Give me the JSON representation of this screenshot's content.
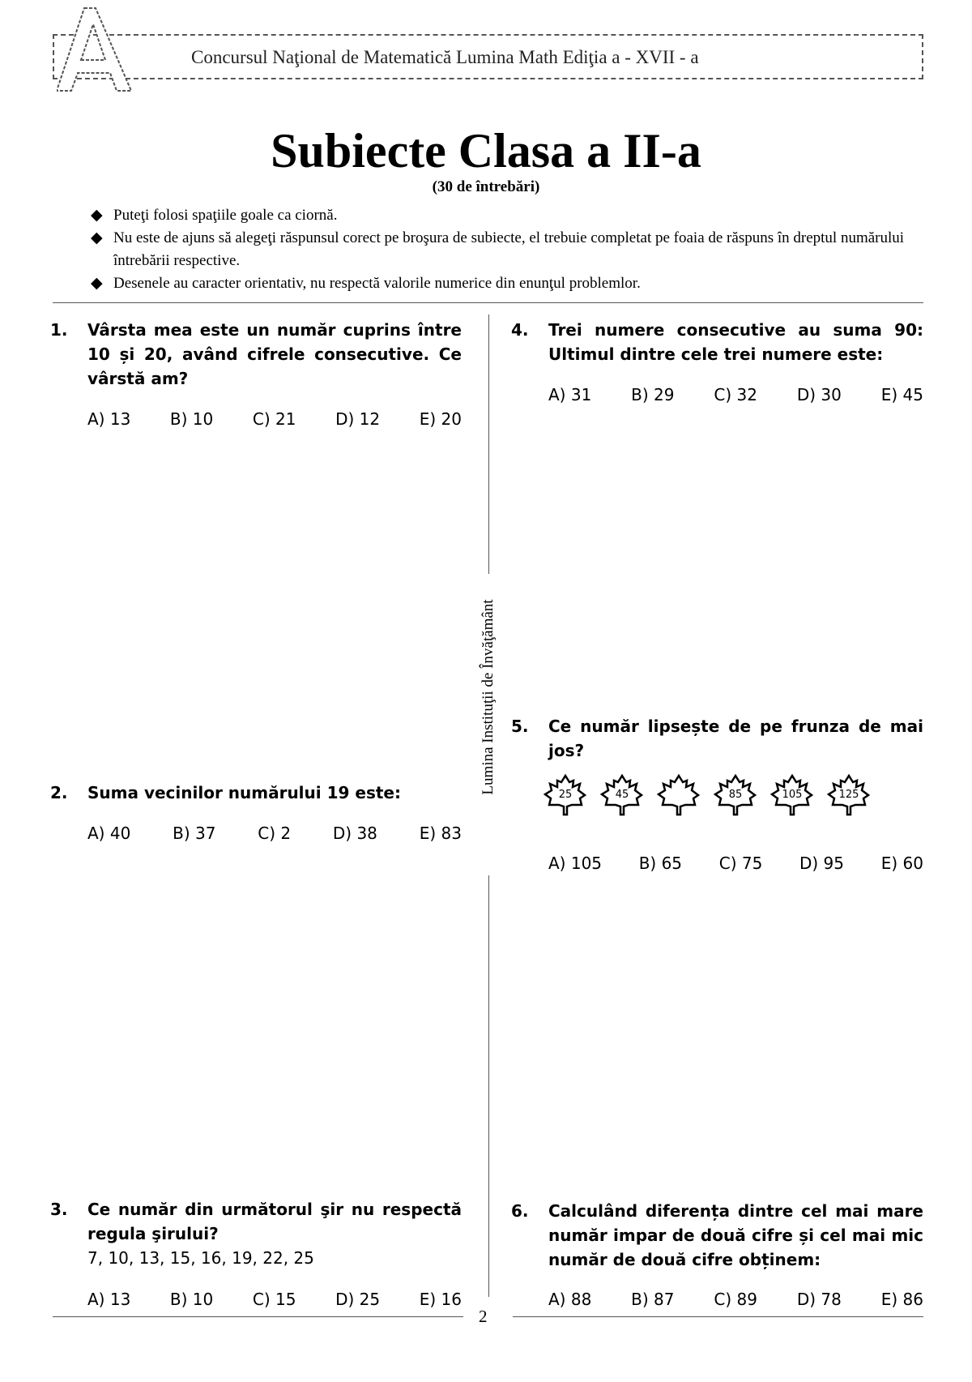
{
  "header": {
    "logo_letter": "A",
    "text": "Concursul Naţional de Matematică Lumina Math Ediţia a - XVII - a"
  },
  "title": "Subiecte Clasa a II-a",
  "subtitle": "(30 de întrebări)",
  "rules": [
    "Puteţi folosi spaţiile goale ca ciornă.",
    "Nu este de ajuns să alegeţi răspunsul corect pe broşura de subiecte, el trebuie completat pe foaia de răspuns în dreptul numărului întrebării respective.",
    "Desenele au caracter orientativ, nu respectă valorile numerice din enunţul problemlor."
  ],
  "side_text": "Lumina Instituţii de Învăţământ",
  "page_number": "2",
  "questions": [
    {
      "num": "1.",
      "text": "Vârsta mea este un număr cuprins între 10 și 20, având cifrele consecutive. Ce vârstă am?",
      "options": [
        "A) 13",
        "B) 10",
        "C) 21",
        "D) 12",
        "E) 20"
      ]
    },
    {
      "num": "2.",
      "text": "Suma vecinilor numărului 19 este:",
      "options": [
        "A) 40",
        "B) 37",
        "C) 2",
        "D) 38",
        "E) 83"
      ]
    },
    {
      "num": "3.",
      "text": "Ce număr din următorul şir nu respectă regula şirului?",
      "sequence": "7, 10, 13, 15, 16, 19, 22, 25",
      "options": [
        "A) 13",
        "B) 10",
        "C) 15",
        "D) 25",
        "E) 16"
      ]
    },
    {
      "num": "4.",
      "text": "Trei numere consecutive au suma 90: Ultimul dintre cele trei numere este:",
      "options": [
        "A) 31",
        "B) 29",
        "C) 32",
        "D) 30",
        "E) 45"
      ]
    },
    {
      "num": "5.",
      "text": "Ce număr lipsește de pe frunza de mai jos?",
      "leaves": [
        "25",
        "45",
        "",
        "85",
        "105",
        "125"
      ],
      "options": [
        "A) 105",
        "B) 65",
        "C) 75",
        "D) 95",
        "E) 60"
      ]
    },
    {
      "num": "6.",
      "text": "Calculând diferența dintre cel mai mare număr impar de două cifre și cel mai mic număr de două cifre obținem:",
      "options": [
        "A) 88",
        "B) 87",
        "C) 89",
        "D) 78",
        "E) 86"
      ]
    }
  ]
}
